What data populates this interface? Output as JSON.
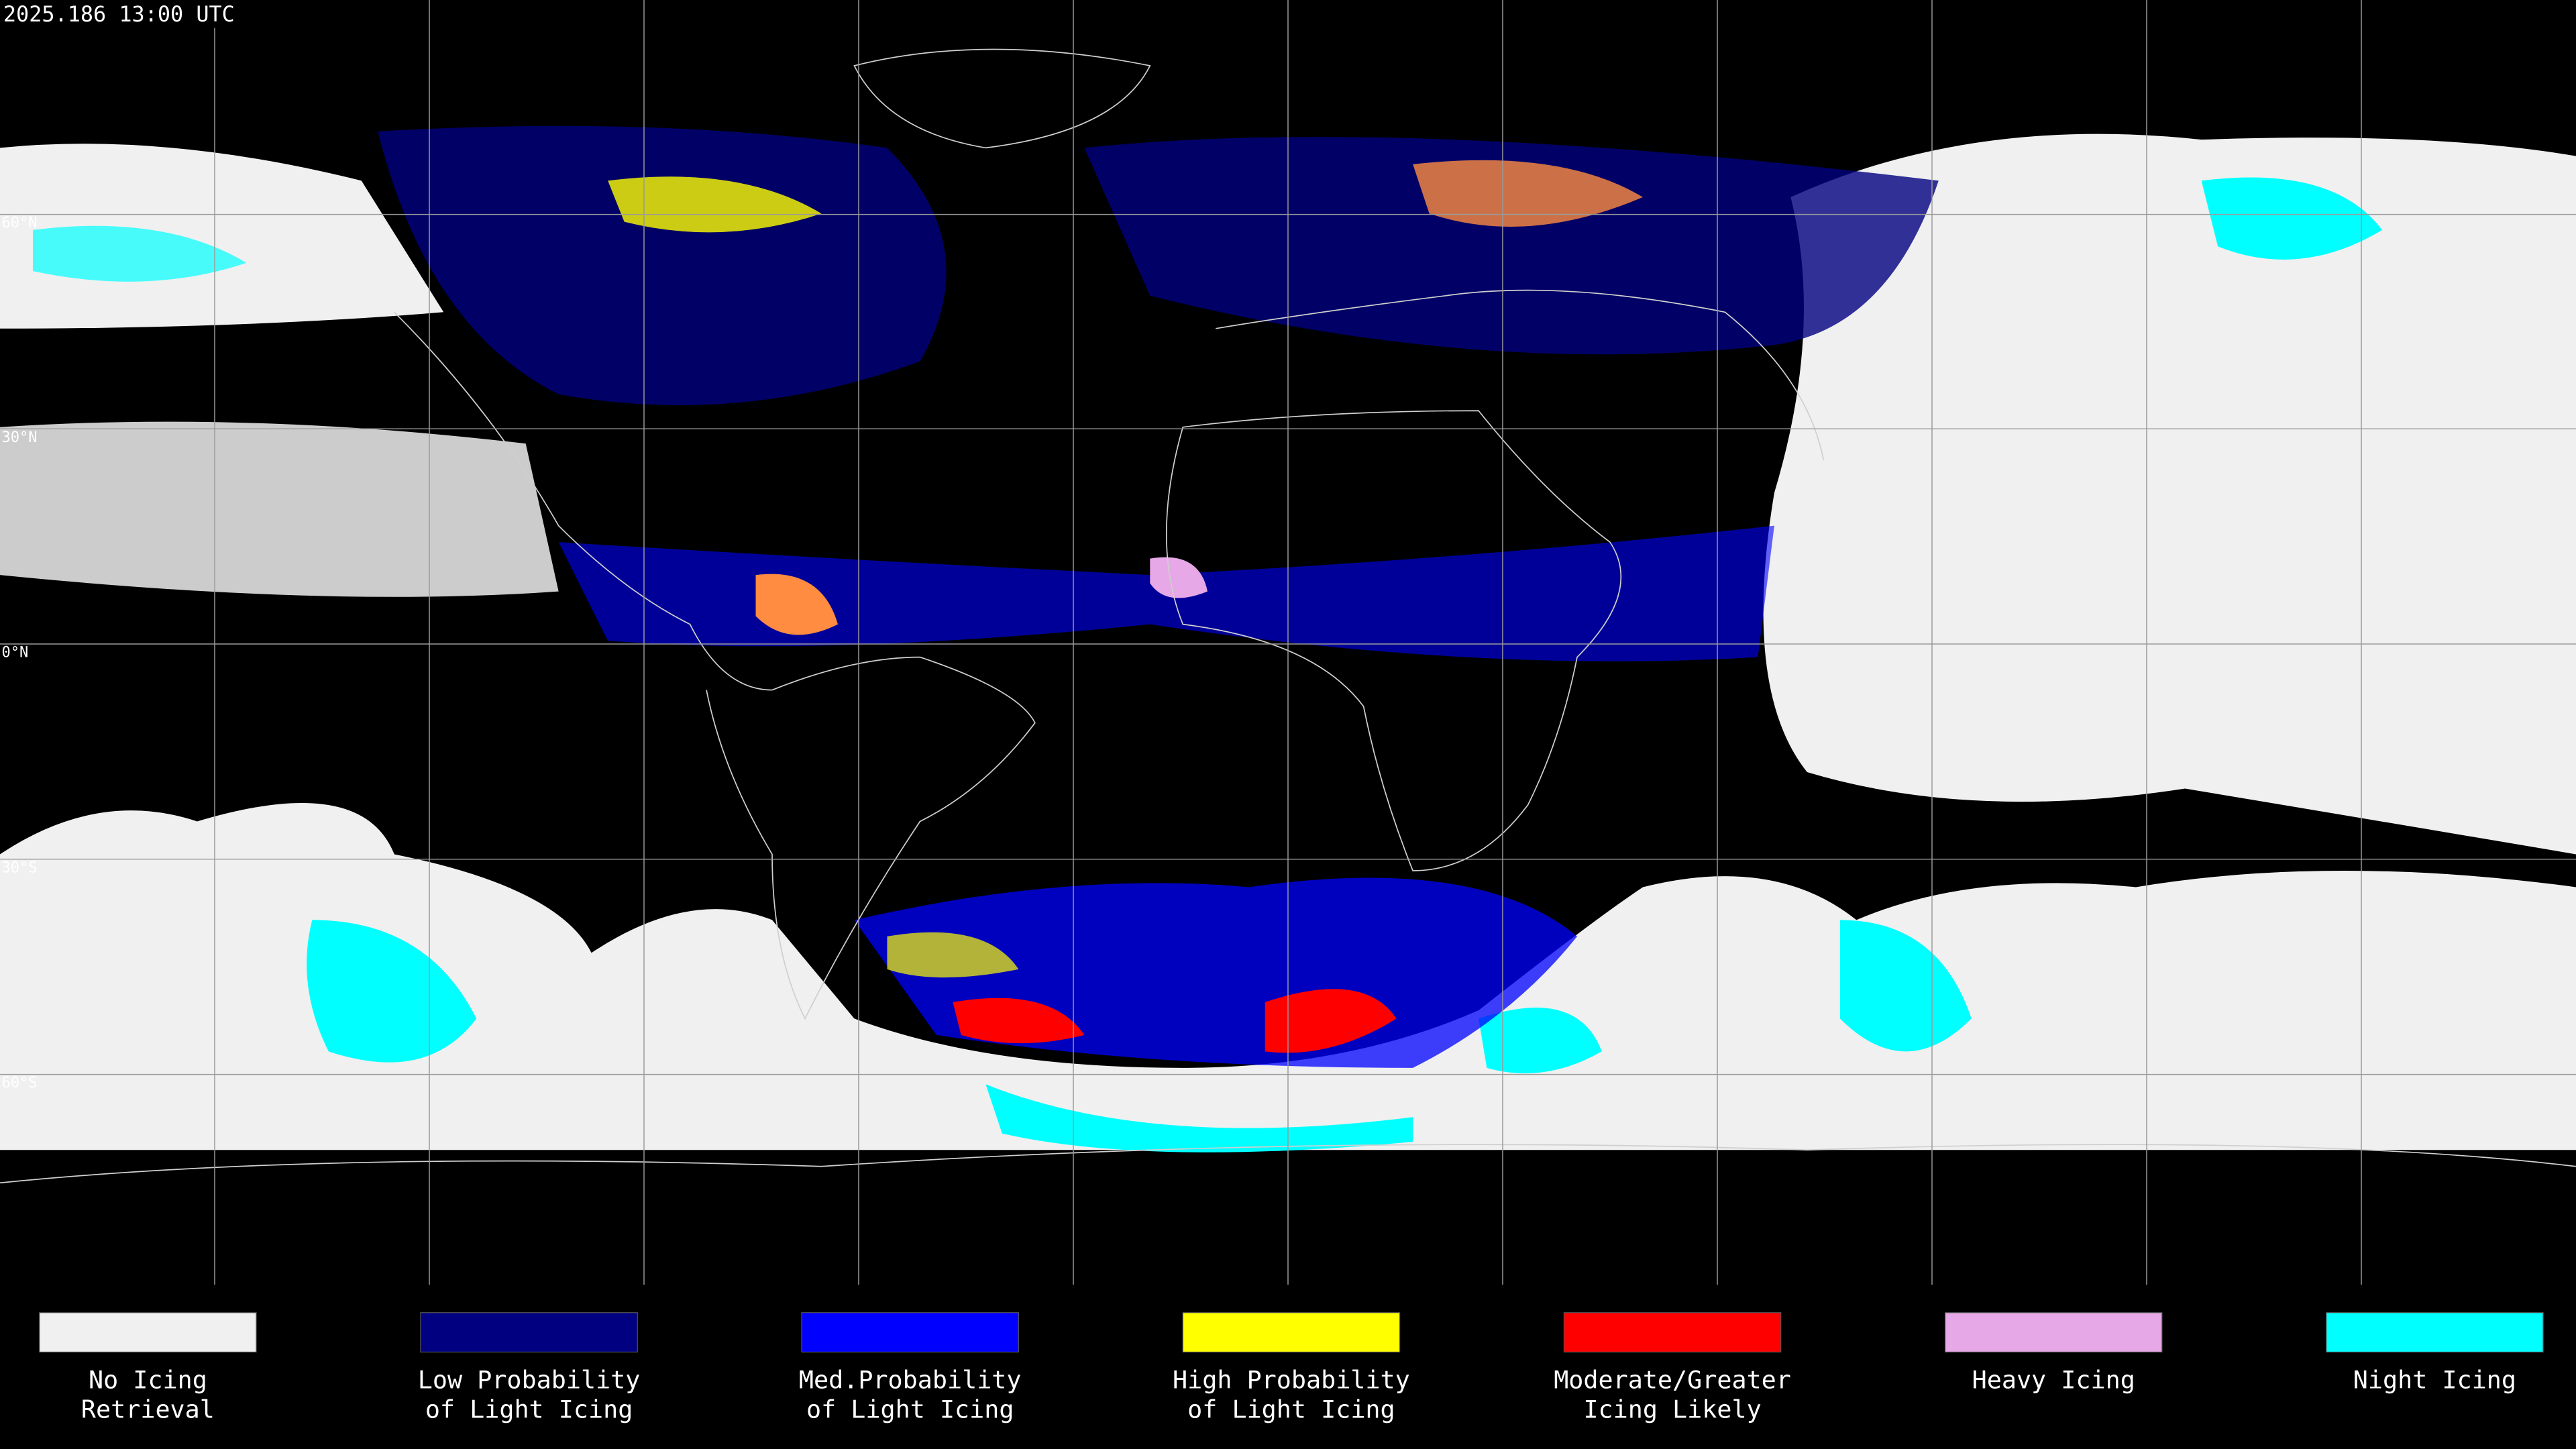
{
  "timestamp": "2025.186 13:00 UTC",
  "grid_labels": [
    "60°N",
    "30°N",
    "0°N",
    "30°S",
    "60°S"
  ],
  "legend": [
    {
      "lines": [
        "No Icing",
        "Retrieval"
      ],
      "color": "#f0f0f0"
    },
    {
      "lines": [
        "Low Probability",
        "of Light Icing"
      ],
      "color": "#000080"
    },
    {
      "lines": [
        "Med.Probability",
        "of Light Icing"
      ],
      "color": "#0000ff"
    },
    {
      "lines": [
        "High Probability",
        "of Light Icing"
      ],
      "color": "#ffff00"
    },
    {
      "lines": [
        "Moderate/Greater",
        "Icing Likely"
      ],
      "color": "#ff0000"
    },
    {
      "lines": [
        "Heavy Icing"
      ],
      "color": "#e6a8e6"
    },
    {
      "lines": [
        "Night Icing"
      ],
      "color": "#00ffff"
    }
  ]
}
